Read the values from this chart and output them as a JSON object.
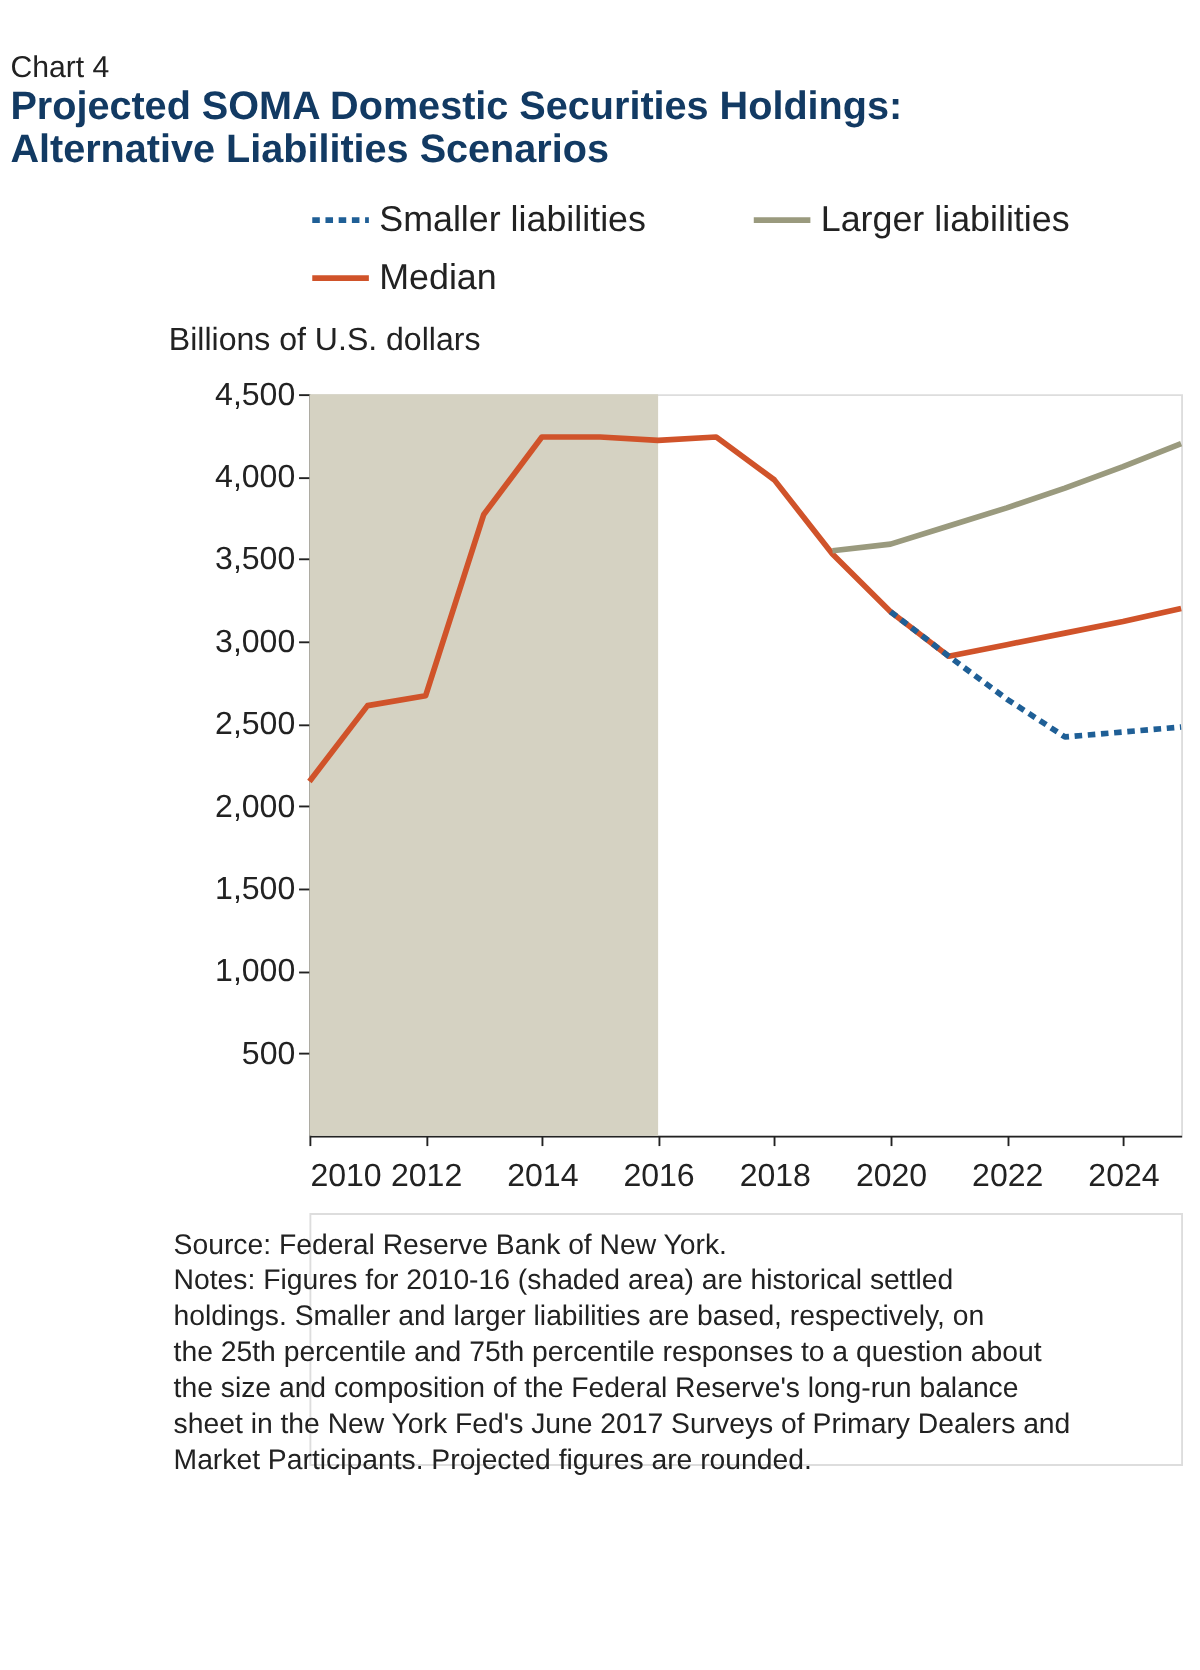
{
  "chart_data": {
    "type": "line",
    "title": "Chart 4",
    "subtitle": "Projected SOMA Domestic Securities Holdings: Alternative Liabilities Scenarios",
    "ylabel": "Billions of U.S. dollars",
    "series": [
      {
        "name": "Smaller liabilities",
        "color": "#1f5f96",
        "line_style": "dashed",
        "x": [
          2020,
          2021,
          2022,
          2023,
          2024,
          2025
        ],
        "values": [
          3180,
          2910,
          2650,
          2420,
          2450,
          2480
        ]
      },
      {
        "name": "Larger liabilities",
        "color": "#9a9a7e",
        "line_style": "solid",
        "x": [
          2019,
          2020,
          2021,
          2022,
          2023,
          2024,
          2025
        ],
        "values": [
          3550,
          3590,
          3700,
          3810,
          3930,
          4060,
          4200
        ]
      },
      {
        "name": "Median",
        "color": "#d0532a",
        "line_style": "solid",
        "x": [
          2010,
          2011,
          2012,
          2013,
          2014,
          2015,
          2016,
          2017,
          2018,
          2019,
          2020,
          2021,
          2022,
          2023,
          2024,
          2025
        ],
        "values": [
          2150,
          2610,
          2670,
          3770,
          4240,
          4240,
          4220,
          4240,
          3980,
          3530,
          3180,
          2910,
          2980,
          3050,
          3120,
          3200
        ]
      }
    ],
    "bands": [
      {
        "axis": "x",
        "from": 2010,
        "to": 2016,
        "color": "#d5d2c2"
      }
    ],
    "xlim": [
      2010,
      2025
    ],
    "xticks": [
      2010,
      2012,
      2014,
      2016,
      2018,
      2020,
      2022,
      2024
    ],
    "ylim": [
      0,
      4500
    ],
    "yticks": [
      500,
      {
        "value": 1000,
        "label": "1,000"
      },
      {
        "value": 1500,
        "label": "1,500"
      },
      {
        "value": 2000,
        "label": "2,000"
      },
      {
        "value": 2500,
        "label": "2,500"
      },
      {
        "value": 3000,
        "label": "3,000"
      },
      {
        "value": 3500,
        "label": "3,500"
      },
      {
        "value": 4000,
        "label": "4,000"
      },
      {
        "value": 4500,
        "label": "4,500"
      }
    ],
    "grid": false,
    "legend": "top",
    "annotations": [
      "Source: Federal Reserve Bank of New York.",
      "Notes: Figures for 2010-16 (shaded area) are historical settled holdings. Smaller and larger liabilities are based, respectively, on the 25th percentile and 75th percentile responses to a question about the size and composition of the Federal Reserve's long-run balance sheet in the New York Fed's June 2017 Surveys of Primary Dealers and Market Participants. Projected figures are rounded."
    ]
  }
}
